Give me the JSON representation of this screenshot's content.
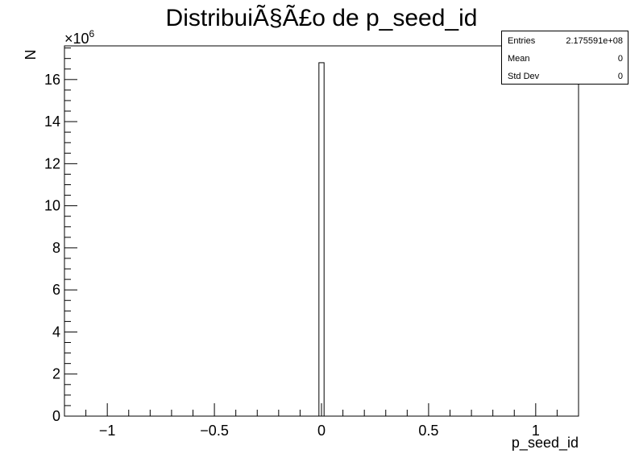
{
  "title": "DistribuiÃ§Ã£o de p_seed_id",
  "stats": [
    {
      "label": "Entries",
      "value": "2.175591e+08"
    },
    {
      "label": "Mean",
      "value": "0"
    },
    {
      "label": "Std Dev",
      "value": "0"
    }
  ],
  "chart_data": {
    "type": "bar",
    "title": "DistribuiÃ§Ã£o de p_seed_id",
    "xlabel": "p_seed_id",
    "ylabel": "N",
    "y_multiplier_label": "×10",
    "y_multiplier_exp": "6",
    "xlim": [
      -1.2,
      1.2
    ],
    "ylim": [
      0,
      17.6
    ],
    "x_ticks": [
      -1,
      -0.5,
      0,
      0.5,
      1
    ],
    "x_tick_labels": [
      "−1",
      "−0.5",
      "0",
      "0.5",
      "1"
    ],
    "y_ticks": [
      0,
      2,
      4,
      6,
      8,
      10,
      12,
      14,
      16
    ],
    "y_tick_labels": [
      "0",
      "2",
      "4",
      "6",
      "8",
      "10",
      "12",
      "14",
      "16"
    ],
    "bins": [
      {
        "x0": -0.012,
        "x1": 0.012,
        "value": 16.8
      }
    ],
    "grid": false,
    "legend": "none"
  }
}
